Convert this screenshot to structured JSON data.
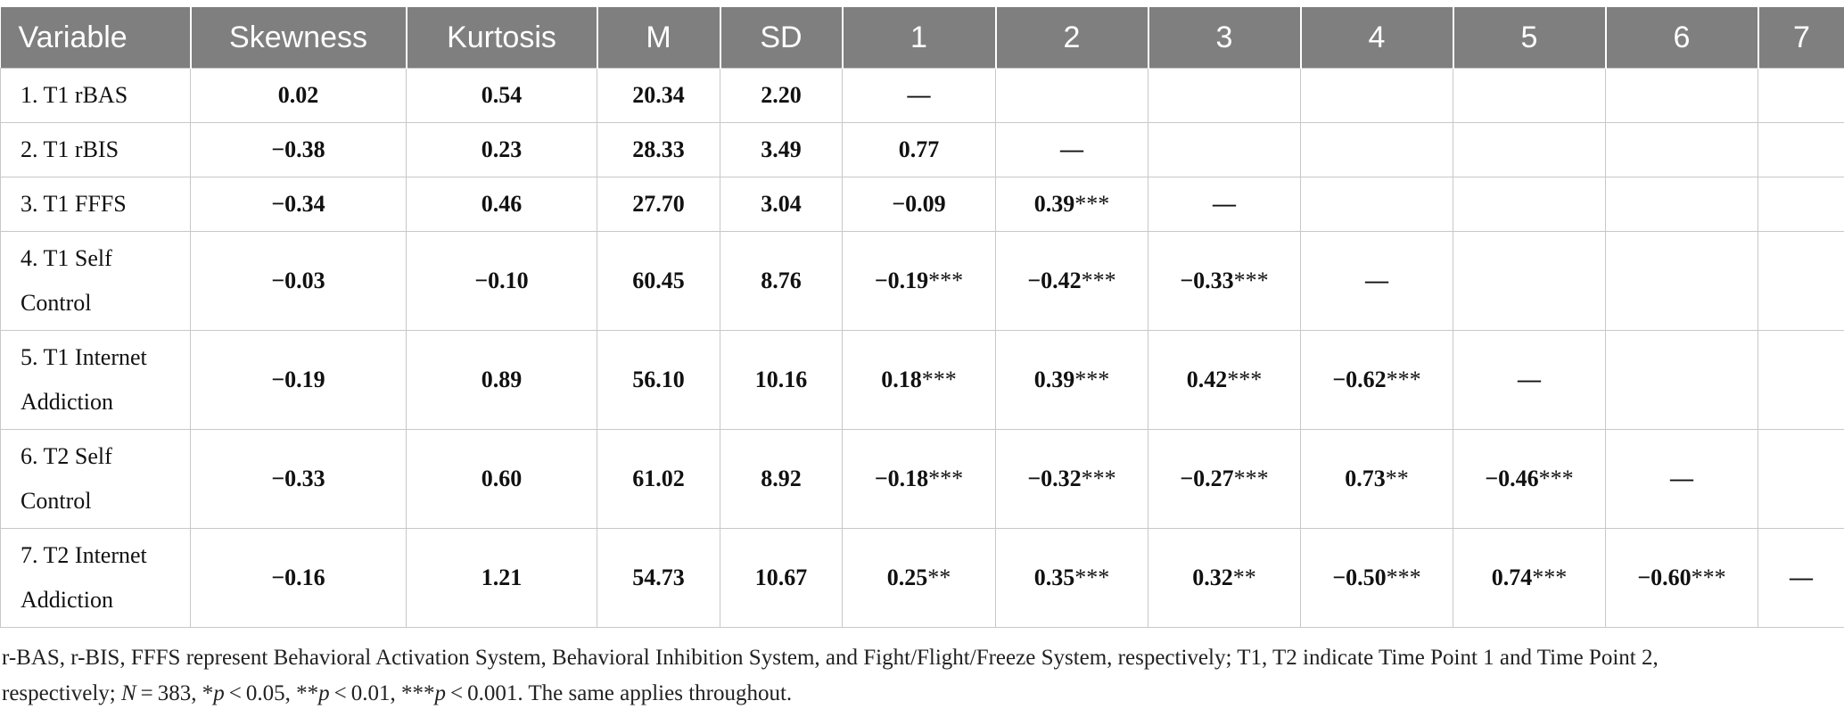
{
  "headers": [
    "Variable",
    "Skewness",
    "Kurtosis",
    "M",
    "SD",
    "1",
    "2",
    "3",
    "4",
    "5",
    "6",
    "7"
  ],
  "rows": [
    {
      "var": [
        "1. T1 rBAS"
      ],
      "skew": "0.02",
      "kurt": "0.54",
      "m": "20.34",
      "sd": "2.20",
      "corr": [
        [
          "—",
          ""
        ],
        [
          "",
          ""
        ],
        [
          "",
          ""
        ],
        [
          "",
          ""
        ],
        [
          "",
          ""
        ],
        [
          "",
          ""
        ],
        [
          "",
          ""
        ]
      ]
    },
    {
      "var": [
        "2. T1 rBIS"
      ],
      "skew": "−0.38",
      "kurt": "0.23",
      "m": "28.33",
      "sd": "3.49",
      "corr": [
        [
          "0.77",
          ""
        ],
        [
          "—",
          ""
        ],
        [
          "",
          ""
        ],
        [
          "",
          ""
        ],
        [
          "",
          ""
        ],
        [
          "",
          ""
        ],
        [
          "",
          ""
        ]
      ]
    },
    {
      "var": [
        "3. T1 FFFS"
      ],
      "skew": "−0.34",
      "kurt": "0.46",
      "m": "27.70",
      "sd": "3.04",
      "corr": [
        [
          "−0.09",
          ""
        ],
        [
          "0.39",
          "***"
        ],
        [
          "—",
          ""
        ],
        [
          "",
          ""
        ],
        [
          "",
          ""
        ],
        [
          "",
          ""
        ],
        [
          "",
          ""
        ]
      ]
    },
    {
      "var": [
        "4. T1 Self",
        "Control"
      ],
      "skew": "−0.03",
      "kurt": "−0.10",
      "m": "60.45",
      "sd": "8.76",
      "corr": [
        [
          "−0.19",
          "***"
        ],
        [
          "−0.42",
          "***"
        ],
        [
          "−0.33",
          "***"
        ],
        [
          "—",
          ""
        ],
        [
          "",
          ""
        ],
        [
          "",
          ""
        ],
        [
          "",
          ""
        ]
      ]
    },
    {
      "var": [
        "5. T1 Internet",
        "Addiction"
      ],
      "skew": "−0.19",
      "kurt": "0.89",
      "m": "56.10",
      "sd": "10.16",
      "corr": [
        [
          "0.18",
          "***"
        ],
        [
          "0.39",
          "***"
        ],
        [
          "0.42",
          "***"
        ],
        [
          "−0.62",
          "***"
        ],
        [
          "—",
          ""
        ],
        [
          "",
          ""
        ],
        [
          "",
          ""
        ]
      ]
    },
    {
      "var": [
        "6. T2 Self",
        "Control"
      ],
      "skew": "−0.33",
      "kurt": "0.60",
      "m": "61.02",
      "sd": "8.92",
      "corr": [
        [
          "−0.18",
          "***"
        ],
        [
          "−0.32",
          "***"
        ],
        [
          "−0.27",
          "***"
        ],
        [
          "0.73",
          "**"
        ],
        [
          "−0.46",
          "***"
        ],
        [
          "—",
          ""
        ],
        [
          "",
          ""
        ]
      ]
    },
    {
      "var": [
        "7. T2 Internet",
        "Addiction"
      ],
      "skew": "−0.16",
      "kurt": "1.21",
      "m": "54.73",
      "sd": "10.67",
      "corr": [
        [
          "0.25",
          "**"
        ],
        [
          "0.35",
          "***"
        ],
        [
          "0.32",
          "**"
        ],
        [
          "−0.50",
          "***"
        ],
        [
          "0.74",
          "***"
        ],
        [
          "−0.60",
          "***"
        ],
        [
          "—",
          ""
        ]
      ]
    }
  ],
  "note": {
    "line1": "r-BAS, r-BIS, FFFS represent Behavioral Activation System, Behavioral Inhibition System, and Fight/Flight/Freeze System, respectively; T1, T2 indicate Time Point 1 and Time Point 2,",
    "line2_a": "respectively; ",
    "N": "N",
    "eq383": " = 383, *",
    "p": "p",
    "lt005": " < 0.05, **",
    "lt001": " < 0.01, ***",
    "lt0001": " < 0.001. The same applies throughout."
  }
}
